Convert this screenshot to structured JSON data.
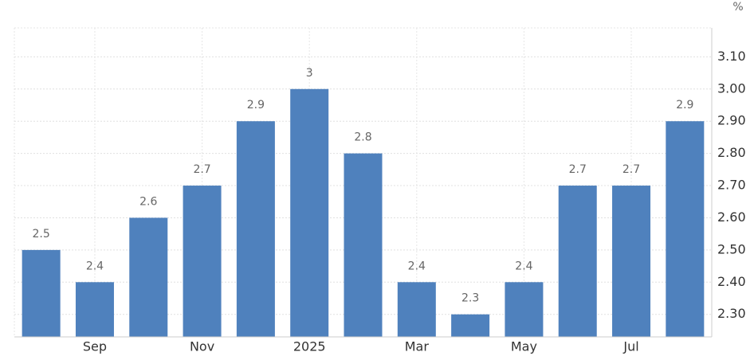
{
  "chart_data": {
    "type": "bar",
    "unit": "%",
    "categories": [
      null,
      "Sep",
      null,
      "Nov",
      null,
      "2025",
      null,
      "Mar",
      null,
      "May",
      null,
      "Jul",
      null
    ],
    "values": [
      2.5,
      2.4,
      2.6,
      2.7,
      2.9,
      3,
      2.8,
      2.4,
      2.3,
      2.4,
      2.7,
      2.7,
      2.9
    ],
    "color": "#4f81bd",
    "ylim": [
      2.23,
      3.19
    ],
    "yticks": [
      {
        "value": 2.3,
        "label": "2.30"
      },
      {
        "value": 2.4,
        "label": "2.40"
      },
      {
        "value": 2.5,
        "label": "2.50"
      },
      {
        "value": 2.6,
        "label": "2.60"
      },
      {
        "value": 2.7,
        "label": "2.70"
      },
      {
        "value": 2.8,
        "label": "2.80"
      },
      {
        "value": 2.9,
        "label": "2.90"
      },
      {
        "value": 3,
        "label": "3.00"
      },
      {
        "value": 3.1,
        "label": "3.10"
      }
    ],
    "grid": true
  }
}
